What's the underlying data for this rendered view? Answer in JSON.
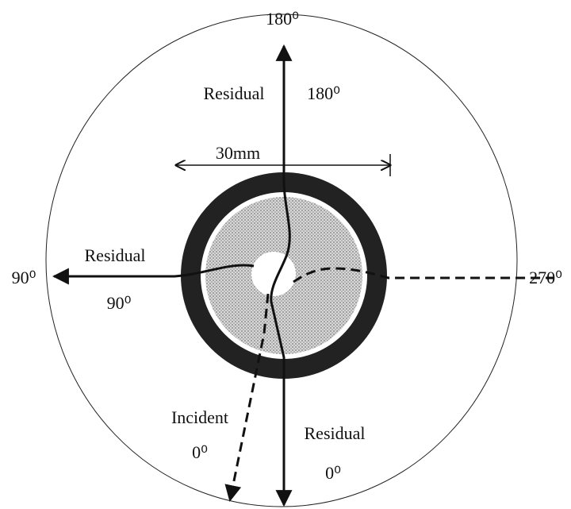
{
  "labels": {
    "top_angle": "180⁰",
    "top_residual": "Residual",
    "top_residual_angle": "180⁰",
    "diameter": "30mm",
    "left_residual": "Residual",
    "left_angle": "90⁰",
    "left_residual_angle": "90⁰",
    "right_angle": "270⁰",
    "incident": "Incident",
    "incident_angle": "0⁰",
    "bottom_residual": "Residual",
    "bottom_residual_angle": "0⁰"
  }
}
